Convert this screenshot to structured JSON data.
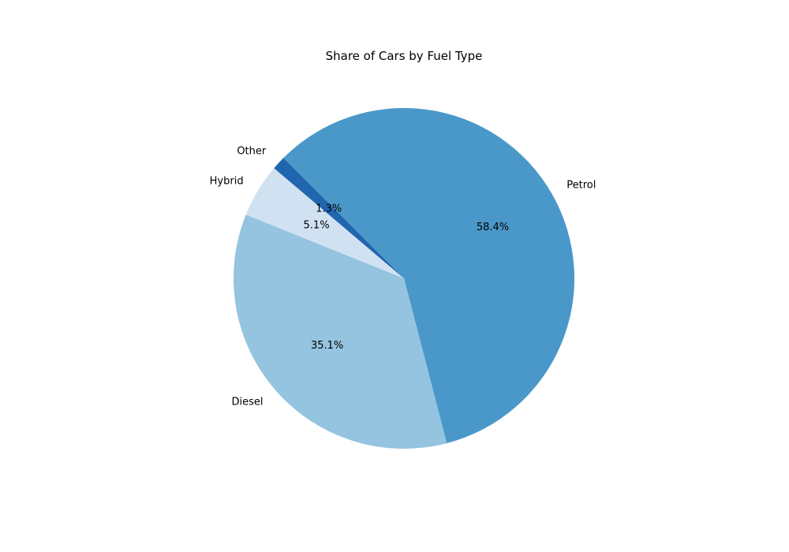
{
  "chart_data": {
    "type": "pie",
    "title": "Share of Cars by Fuel Type",
    "categories": [
      "Petrol",
      "Diesel",
      "Hybrid",
      "Other"
    ],
    "values": [
      58.4,
      35.1,
      5.1,
      1.3
    ],
    "value_labels": [
      "58.4%",
      "35.1%",
      "5.1%",
      "1.3%"
    ],
    "colors": [
      "#4a98c9",
      "#94c4df",
      "#d0e1f2",
      "#1f66ae"
    ],
    "start_angle_deg": 135,
    "direction": "clockwise",
    "legend": "none"
  }
}
